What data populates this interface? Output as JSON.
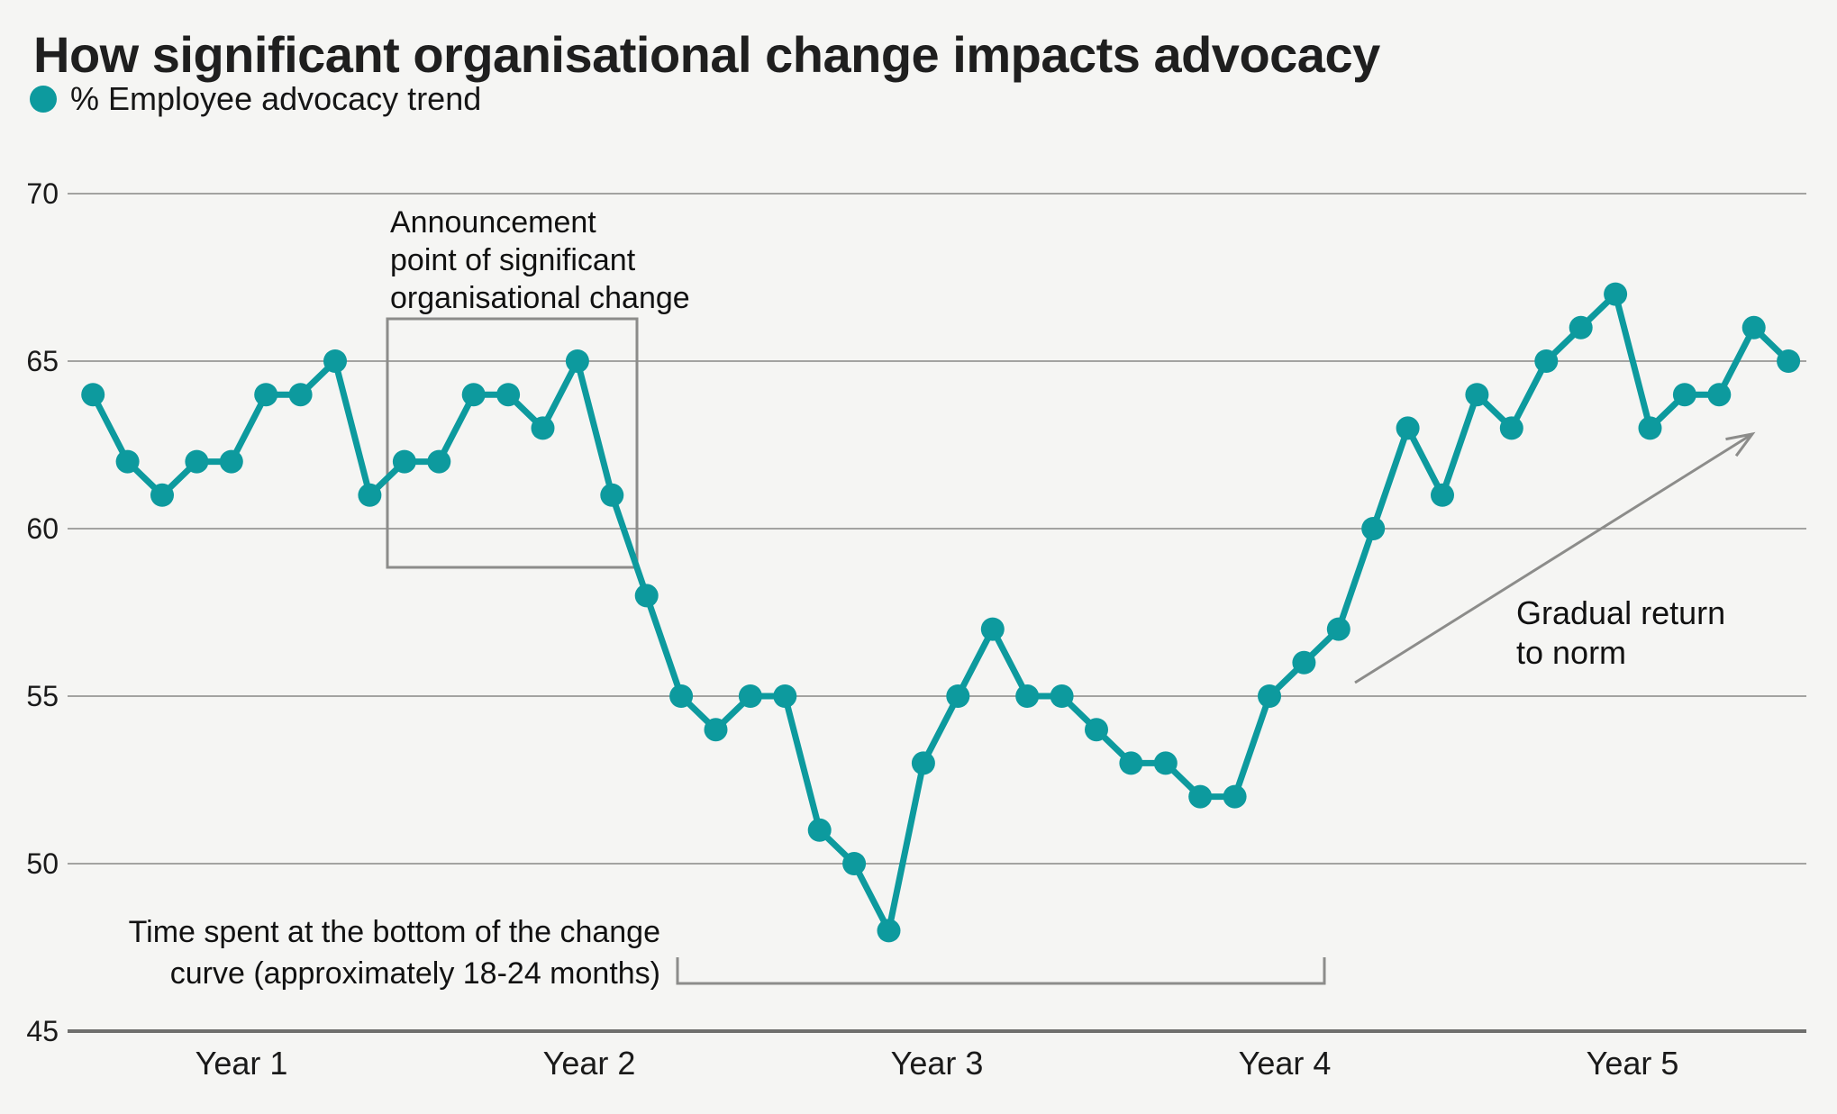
{
  "header": {
    "title": "How significant organisational change impacts advocacy",
    "legend_label": "% Employee advocacy trend"
  },
  "annotations": {
    "announcement": {
      "lines": [
        "Announcement",
        "point of significant",
        "organisational change"
      ]
    },
    "time_spent": {
      "lines": [
        "Time spent at the bottom of the change",
        "curve (approximately 18-24 months)"
      ]
    },
    "gradual": {
      "lines": [
        "Gradual return",
        "to norm"
      ]
    }
  },
  "colors": {
    "series": "#0d9a9e",
    "grid": "#a3a3a1",
    "axis": "#6f6f6d",
    "annotation": "#8c8c8a",
    "text": "#1a1a1a",
    "background": "#f5f5f3"
  },
  "chart_data": {
    "type": "line",
    "title": "How significant organisational change impacts advocacy",
    "series_name": "% Employee advocacy trend",
    "categories": [
      "Year 1",
      "Year 2",
      "Year 3",
      "Year 4",
      "Year 5"
    ],
    "points_per_category": 10,
    "values": [
      64,
      62,
      61,
      62,
      62,
      64,
      64,
      65,
      61,
      62,
      62,
      64,
      64,
      63,
      65,
      61,
      58,
      55,
      54,
      55,
      55,
      51,
      50,
      48,
      53,
      55,
      57,
      55,
      55,
      54,
      53,
      53,
      52,
      52,
      55,
      56,
      57,
      60,
      63,
      61,
      64,
      63,
      65,
      66,
      67,
      63,
      64,
      64,
      66,
      65
    ],
    "yticks": [
      70,
      65,
      60,
      55,
      50,
      45
    ],
    "ylim": [
      45,
      70
    ],
    "grid": true,
    "legend_position": "top-left",
    "annotation_notes": [
      "Announcement point of significant organisational change",
      "Time spent at the bottom of the change curve (approximately 18-24 months)",
      "Gradual return to norm"
    ]
  }
}
